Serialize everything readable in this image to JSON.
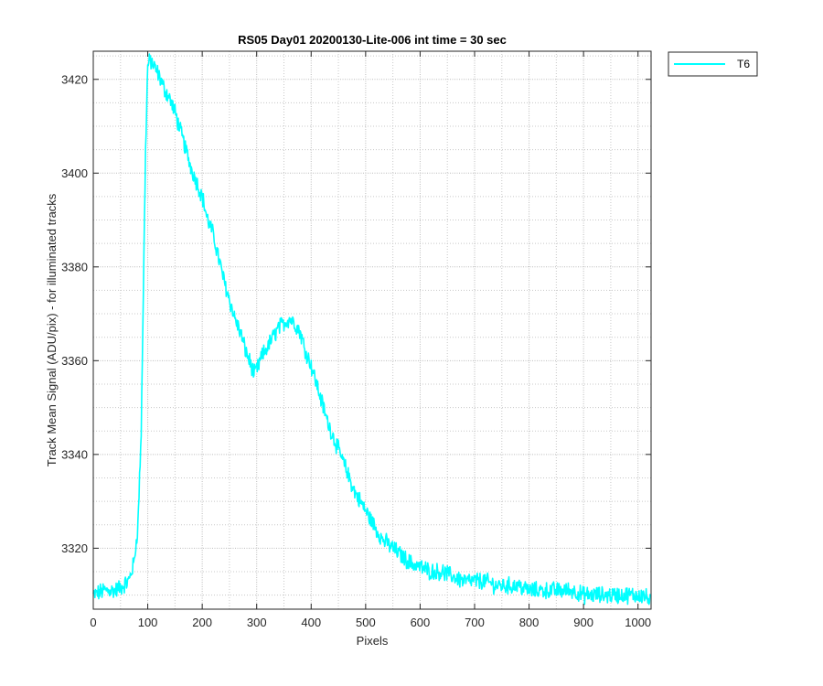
{
  "chart_data": {
    "type": "line",
    "title": "RS05 Day01 20200130-Lite-006 int time = 30 sec",
    "xlabel": "Pixels",
    "ylabel": "Track Mean Signal (ADU/pix) - for illuminated tracks",
    "xlim": [
      0,
      1024
    ],
    "ylim": [
      3307,
      3426
    ],
    "xticks": [
      0,
      100,
      200,
      300,
      400,
      500,
      600,
      700,
      800,
      900,
      1000
    ],
    "yticks": [
      3320,
      3340,
      3360,
      3380,
      3400,
      3420
    ],
    "grid": true,
    "minor_grid": true,
    "legend": {
      "position": "outside-top-right",
      "entries": [
        "T6"
      ]
    },
    "series": [
      {
        "name": "T6",
        "color": "#00FFFF",
        "noise": 1.6,
        "x": [
          0,
          20,
          40,
          55,
          65,
          75,
          82,
          88,
          92,
          96,
          100,
          105,
          110,
          120,
          130,
          140,
          150,
          160,
          170,
          180,
          190,
          200,
          210,
          220,
          230,
          240,
          250,
          260,
          270,
          280,
          290,
          295,
          300,
          310,
          320,
          330,
          340,
          350,
          360,
          370,
          380,
          390,
          400,
          410,
          420,
          430,
          440,
          450,
          460,
          470,
          480,
          490,
          500,
          510,
          520,
          530,
          540,
          550,
          560,
          570,
          580,
          600,
          620,
          640,
          660,
          680,
          700,
          720,
          740,
          760,
          780,
          800,
          820,
          840,
          860,
          880,
          900,
          920,
          940,
          960,
          980,
          1000,
          1010,
          1020,
          1023
        ],
        "y": [
          3310,
          3311,
          3311,
          3312,
          3313,
          3317,
          3325,
          3345,
          3375,
          3405,
          3423,
          3424,
          3423,
          3421,
          3418,
          3416,
          3413,
          3409,
          3405,
          3401,
          3398,
          3395,
          3390,
          3387,
          3382,
          3377,
          3373,
          3369,
          3366,
          3362,
          3359,
          3357,
          3358,
          3361,
          3363,
          3365,
          3367,
          3368,
          3369,
          3368,
          3366,
          3362,
          3359,
          3355,
          3351,
          3347,
          3344,
          3341,
          3338,
          3335,
          3332,
          3330,
          3328,
          3326,
          3324,
          3322,
          3321,
          3320,
          3319,
          3318,
          3317,
          3316,
          3315,
          3315,
          3314,
          3313,
          3313,
          3313,
          3312,
          3312,
          3312,
          3311,
          3311,
          3311,
          3311,
          3311,
          3310,
          3310,
          3310,
          3310,
          3310,
          3310,
          3310,
          3309,
          3309
        ]
      }
    ]
  }
}
